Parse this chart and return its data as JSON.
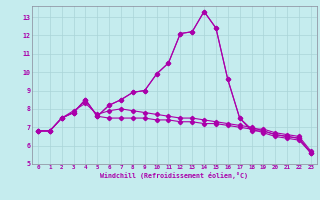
{
  "xlabel": "Windchill (Refroidissement éolien,°C)",
  "background_color": "#c5ecee",
  "grid_color": "#aad4d8",
  "line_color": "#aa00aa",
  "x": [
    0,
    1,
    2,
    3,
    4,
    5,
    6,
    7,
    8,
    9,
    10,
    11,
    12,
    13,
    14,
    15,
    16,
    17,
    18,
    19,
    20,
    21,
    22,
    23
  ],
  "line_a": [
    6.8,
    6.8,
    7.5,
    7.8,
    8.5,
    7.6,
    7.5,
    7.5,
    7.5,
    7.5,
    7.4,
    7.4,
    7.3,
    7.3,
    7.2,
    7.2,
    7.1,
    7.0,
    6.9,
    6.7,
    6.5,
    6.4,
    6.3,
    5.6
  ],
  "line_b": [
    6.8,
    6.8,
    7.5,
    7.9,
    8.3,
    7.7,
    7.9,
    8.0,
    7.9,
    7.8,
    7.7,
    7.6,
    7.5,
    7.5,
    7.4,
    7.3,
    7.2,
    7.1,
    7.0,
    6.8,
    6.6,
    6.5,
    6.4,
    5.6
  ],
  "line_c": [
    6.8,
    6.8,
    7.5,
    7.8,
    8.5,
    7.6,
    8.2,
    8.5,
    8.9,
    9.0,
    9.9,
    10.5,
    12.1,
    12.2,
    13.3,
    12.4,
    9.6,
    7.5,
    6.8,
    6.8,
    6.6,
    6.5,
    6.4,
    5.6
  ],
  "line_d": [
    6.8,
    6.8,
    7.5,
    7.8,
    8.5,
    7.6,
    8.2,
    8.5,
    8.9,
    9.0,
    9.9,
    10.5,
    12.1,
    12.2,
    13.3,
    12.4,
    9.6,
    7.5,
    6.9,
    6.9,
    6.7,
    6.6,
    6.5,
    5.7
  ],
  "ylim_min": 5,
  "ylim_max": 13.6,
  "yticks": [
    5,
    6,
    7,
    8,
    9,
    10,
    11,
    12,
    13
  ],
  "xlim_min": -0.5,
  "xlim_max": 23.5,
  "xticks": [
    0,
    1,
    2,
    3,
    4,
    5,
    6,
    7,
    8,
    9,
    10,
    11,
    12,
    13,
    14,
    15,
    16,
    17,
    18,
    19,
    20,
    21,
    22,
    23
  ]
}
